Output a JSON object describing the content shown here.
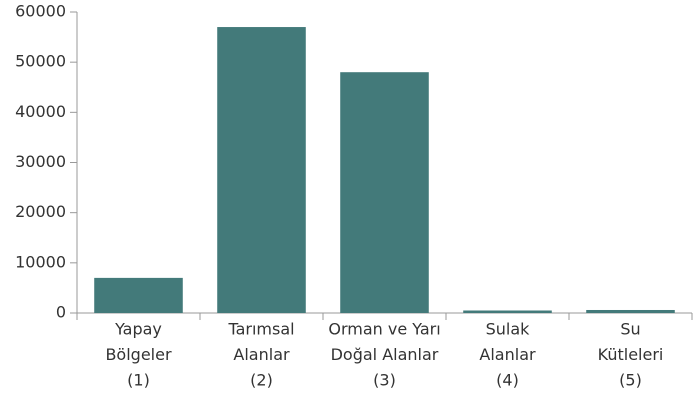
{
  "chart_data": {
    "type": "bar",
    "categories": [
      [
        "Yapay",
        "Bölgeler",
        "(1)"
      ],
      [
        "Tarımsal",
        "Alanlar",
        "(2)"
      ],
      [
        "Orman ve Yarı",
        "Doğal Alanlar",
        "(3)"
      ],
      [
        "Sulak",
        "Alanlar",
        "(4)"
      ],
      [
        "Su",
        "Kütleleri",
        "(5)"
      ]
    ],
    "values": [
      7000,
      57000,
      48000,
      500,
      600
    ],
    "color": "#437a7a",
    "ylim": [
      0,
      60000
    ],
    "yticks": [
      0,
      10000,
      20000,
      30000,
      40000,
      50000,
      60000
    ],
    "grid": false
  }
}
